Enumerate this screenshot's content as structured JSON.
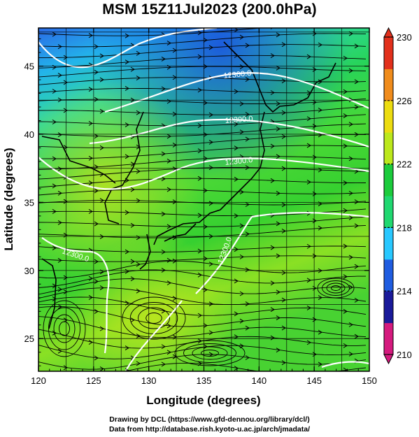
{
  "title": "MSM 15Z11Jul2023 (200.0hPa)",
  "map": {
    "xlabel": "Longitude (degrees)",
    "ylabel": "Latitude  (degrees)",
    "xlim": [
      120,
      150
    ],
    "ylim": [
      22.6,
      47.8
    ],
    "x_ticks": [
      "120",
      "125",
      "130",
      "135",
      "140",
      "145",
      "150"
    ],
    "y_ticks": [
      "25",
      "30",
      "35",
      "40",
      "45"
    ],
    "contour_label": "12300.0",
    "colorbar": {
      "min": 210,
      "max": 230,
      "labels": [
        "230",
        "226",
        "222",
        "218",
        "214",
        "210"
      ],
      "colors": [
        "#d51a7e",
        "#1a1a9a",
        "#1f5ce0",
        "#28c8ff",
        "#20d870",
        "#1ccc3c",
        "#bce81c",
        "#ecdc10",
        "#f08c1c",
        "#e2301c"
      ]
    }
  },
  "footer": {
    "line1": "Drawing by DCL (https://www.gfd-dennou.org/library/dcl/)",
    "line2": "Data from http://database.rish.kyoto-u.ac.jp/arch/jmadata/"
  }
}
